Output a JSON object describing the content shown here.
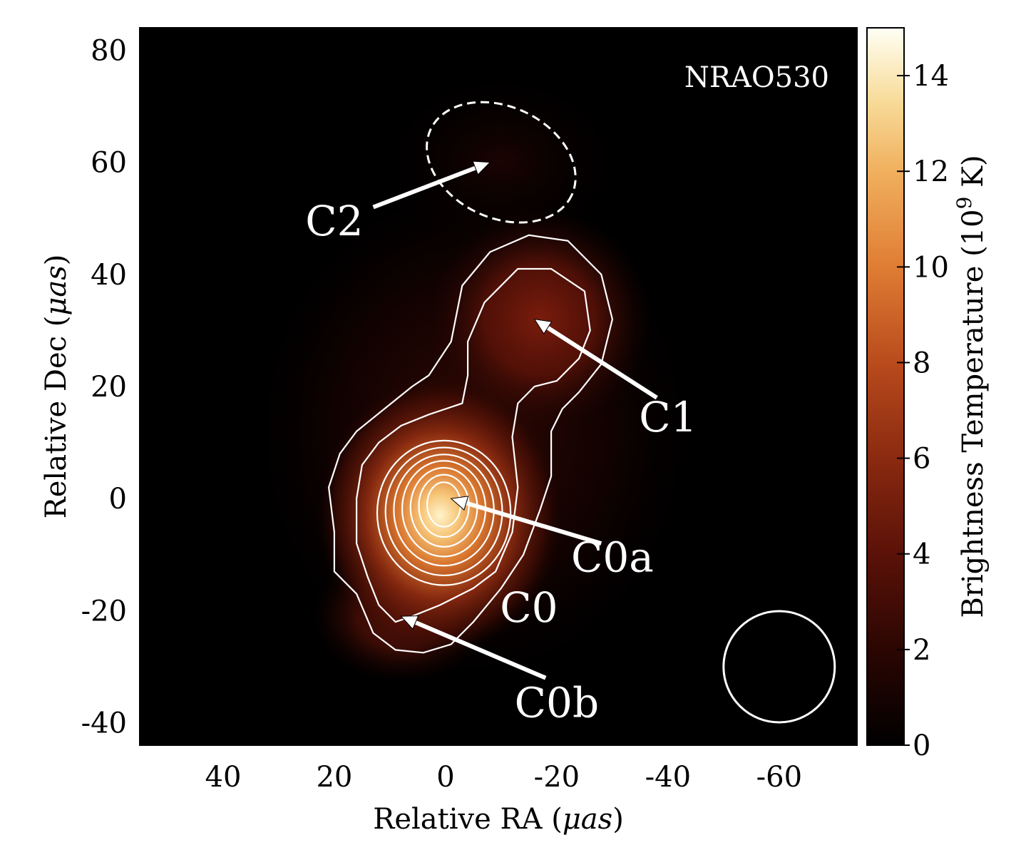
{
  "chart_data": {
    "type": "heatmap",
    "title": "NRAO530",
    "xlabel_text": "Relative RA (",
    "xlabel_unit": "μas",
    "xlabel_close": ")",
    "ylabel_text": "Relative Dec (",
    "ylabel_unit": "μas",
    "ylabel_close": ")",
    "xlim": [
      55,
      -74
    ],
    "ylim": [
      -44,
      84
    ],
    "xticks": [
      40,
      20,
      0,
      -20,
      -40,
      -60
    ],
    "xtick_labels": [
      "40",
      "20",
      "0",
      "-20",
      "-40",
      "-60"
    ],
    "yticks": [
      80,
      60,
      40,
      20,
      0,
      -20,
      -40
    ],
    "ytick_labels": [
      "80",
      "60",
      "40",
      "20",
      "0",
      "-20",
      "-40"
    ],
    "colorbar": {
      "label_text": "Brightness Temperature (10",
      "label_exponent": "9",
      "label_close": " K)",
      "range": [
        0,
        15
      ],
      "ticks": [
        0,
        2,
        4,
        6,
        8,
        10,
        12,
        14
      ],
      "tick_labels": [
        "0",
        "2",
        "4",
        "6",
        "8",
        "10",
        "12",
        "14"
      ]
    },
    "components": [
      {
        "name": "C0a",
        "ra": 0,
        "dec": 0,
        "peak": 14.5
      },
      {
        "name": "C0b",
        "ra": 8,
        "dec": -21,
        "peak": 2.2
      },
      {
        "name": "C1",
        "ra": -17,
        "dec": 32,
        "peak": 4.0
      },
      {
        "name": "C2",
        "ra": -10,
        "dec": 60,
        "peak": 0.4
      }
    ],
    "annotations": [
      {
        "label": "C2",
        "text_ra": 20,
        "text_dec": 47,
        "arrow_from": [
          13,
          52
        ],
        "arrow_to": [
          -8,
          60
        ]
      },
      {
        "label": "C1",
        "text_ra": -40,
        "text_dec": 12,
        "arrow_from": [
          -38,
          18
        ],
        "arrow_to": [
          -16,
          32
        ]
      },
      {
        "label": "C0a",
        "text_ra": -30,
        "text_dec": -13,
        "arrow_from": [
          -28,
          -8
        ],
        "arrow_to": [
          -1,
          0
        ]
      },
      {
        "label": "C0",
        "text_ra": -15,
        "text_dec": -22,
        "arrow_from": null,
        "arrow_to": null
      },
      {
        "label": "C0b",
        "text_ra": -20,
        "text_dec": -39,
        "arrow_from": [
          -18,
          -32
        ],
        "arrow_to": [
          8,
          -21
        ]
      }
    ],
    "beam": {
      "ra": -60,
      "dec": -30,
      "radius": 10
    },
    "c2_ellipse": {
      "ra": -10,
      "dec": 60,
      "semi_major": 14,
      "semi_minor": 10,
      "angle_deg": -25
    }
  }
}
